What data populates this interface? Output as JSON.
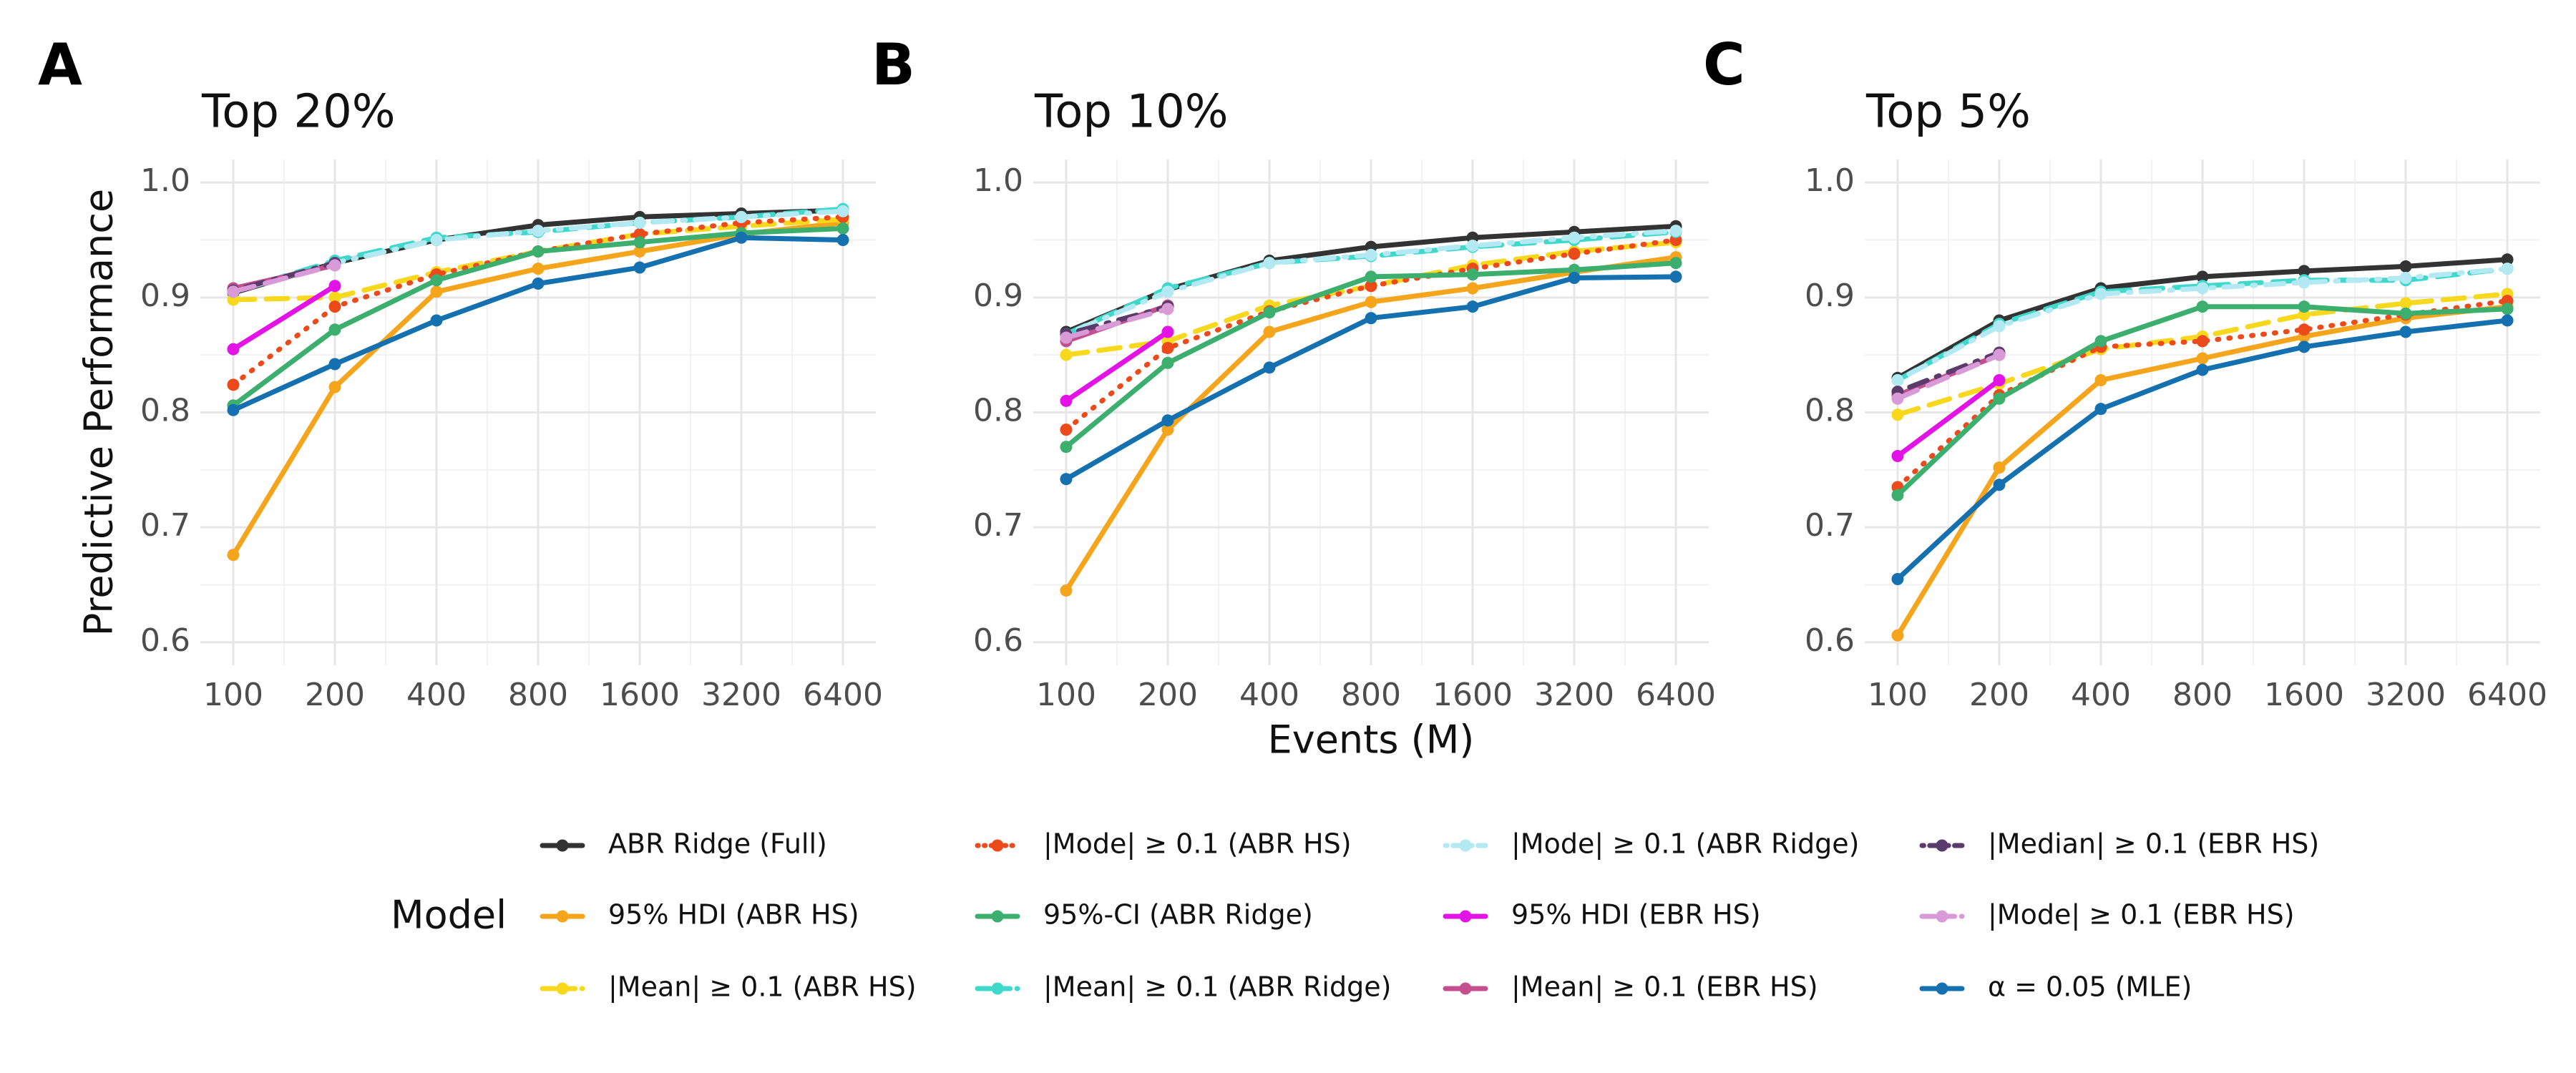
{
  "chart_data": [
    {
      "type": "line",
      "panel": "A",
      "title": "Top 20%",
      "y_label": "Predictive Performance",
      "categories": [
        "100",
        "200",
        "400",
        "800",
        "1600",
        "3200",
        "6400"
      ],
      "ylim": [
        0.58,
        1.02
      ],
      "yticks": [
        0.6,
        0.7,
        0.8,
        0.9,
        {
          "value": 1,
          "label": "1.0"
        }
      ],
      "grid": true,
      "series": [
        {
          "values": [
            0.904,
            0.93,
            0.95,
            0.963,
            0.97,
            0.973,
            0.976
          ]
        },
        {
          "values": [
            0.676,
            0.822,
            0.905,
            0.925,
            0.94,
            0.955,
            0.965
          ]
        },
        {
          "values": [
            0.898,
            0.9,
            0.922,
            0.94,
            0.955,
            0.962,
            0.968
          ]
        },
        {
          "values": [
            0.824,
            0.892,
            0.92,
            0.94,
            0.955,
            0.965,
            0.97
          ]
        },
        {
          "values": [
            0.806,
            0.872,
            0.915,
            0.94,
            0.948,
            0.956,
            0.96
          ]
        },
        {
          "values": [
            0.905,
            0.932,
            0.952,
            0.957,
            0.965,
            0.97,
            0.977
          ]
        },
        {
          "values": [
            0.905,
            0.93,
            0.95,
            0.958,
            0.965,
            0.97,
            0.975
          ]
        },
        {
          "values": [
            0.855,
            0.91,
            null,
            null,
            null,
            null,
            null
          ]
        },
        {
          "values": [
            0.908,
            0.928,
            null,
            null,
            null,
            null,
            null
          ]
        },
        {
          "values": [
            0.906,
            0.93,
            null,
            null,
            null,
            null,
            null
          ]
        },
        {
          "values": [
            0.905,
            0.928,
            null,
            null,
            null,
            null,
            null
          ]
        },
        {
          "values": [
            0.802,
            0.842,
            0.88,
            0.912,
            0.926,
            0.952,
            0.95
          ]
        }
      ]
    },
    {
      "type": "line",
      "panel": "B",
      "title": "Top 10%",
      "x_label": "Events (M)",
      "categories": [
        "100",
        "200",
        "400",
        "800",
        "1600",
        "3200",
        "6400"
      ],
      "ylim": [
        0.58,
        1.02
      ],
      "yticks": [
        0.6,
        0.7,
        0.8,
        0.9,
        {
          "value": 1,
          "label": "1.0"
        }
      ],
      "grid": true,
      "series": [
        {
          "values": [
            0.87,
            0.907,
            0.932,
            0.944,
            0.952,
            0.957,
            0.962
          ]
        },
        {
          "values": [
            0.645,
            0.785,
            0.87,
            0.896,
            0.908,
            0.922,
            0.935
          ]
        },
        {
          "values": [
            0.85,
            0.862,
            0.893,
            0.91,
            0.928,
            0.94,
            0.948
          ]
        },
        {
          "values": [
            0.785,
            0.856,
            0.888,
            0.91,
            0.925,
            0.938,
            0.95
          ]
        },
        {
          "values": [
            0.77,
            0.843,
            0.887,
            0.918,
            0.92,
            0.924,
            0.93
          ]
        },
        {
          "values": [
            0.868,
            0.908,
            0.93,
            0.936,
            0.944,
            0.95,
            0.957
          ]
        },
        {
          "values": [
            0.868,
            0.905,
            0.93,
            0.937,
            0.945,
            0.952,
            0.958
          ]
        },
        {
          "values": [
            0.81,
            0.87,
            null,
            null,
            null,
            null,
            null
          ]
        },
        {
          "values": [
            0.862,
            0.893,
            null,
            null,
            null,
            null,
            null
          ]
        },
        {
          "values": [
            0.868,
            0.892,
            null,
            null,
            null,
            null,
            null
          ]
        },
        {
          "values": [
            0.865,
            0.89,
            null,
            null,
            null,
            null,
            null
          ]
        },
        {
          "values": [
            0.742,
            0.793,
            0.839,
            0.882,
            0.892,
            0.917,
            0.918
          ]
        }
      ]
    },
    {
      "type": "line",
      "panel": "C",
      "title": "Top 5%",
      "categories": [
        "100",
        "200",
        "400",
        "800",
        "1600",
        "3200",
        "6400"
      ],
      "ylim": [
        0.58,
        1.02
      ],
      "yticks": [
        0.6,
        0.7,
        0.8,
        0.9,
        {
          "value": 1,
          "label": "1.0"
        }
      ],
      "grid": true,
      "series": [
        {
          "values": [
            0.83,
            0.88,
            0.908,
            0.918,
            0.923,
            0.927,
            0.933
          ]
        },
        {
          "values": [
            0.606,
            0.752,
            0.828,
            0.847,
            0.866,
            0.882,
            0.892
          ]
        },
        {
          "values": [
            0.798,
            0.825,
            0.855,
            0.866,
            0.885,
            0.895,
            0.903
          ]
        },
        {
          "values": [
            0.735,
            0.815,
            0.857,
            0.862,
            0.872,
            0.885,
            0.897
          ]
        },
        {
          "values": [
            0.728,
            0.812,
            0.862,
            0.892,
            0.892,
            0.886,
            0.89
          ]
        },
        {
          "values": [
            0.828,
            0.877,
            0.905,
            0.91,
            0.915,
            0.915,
            0.925
          ]
        },
        {
          "values": [
            0.828,
            0.875,
            0.903,
            0.908,
            0.913,
            0.917,
            0.925
          ]
        },
        {
          "values": [
            0.762,
            0.828,
            null,
            null,
            null,
            null,
            null
          ]
        },
        {
          "values": [
            0.815,
            0.85,
            null,
            null,
            null,
            null,
            null
          ]
        },
        {
          "values": [
            0.818,
            0.852,
            null,
            null,
            null,
            null,
            null
          ]
        },
        {
          "values": [
            0.812,
            0.85,
            null,
            null,
            null,
            null,
            null
          ]
        },
        {
          "values": [
            0.655,
            0.737,
            0.803,
            0.837,
            0.857,
            0.87,
            0.88
          ]
        }
      ]
    }
  ],
  "legend": {
    "title": "Model",
    "items": [
      {
        "name": "ABR Ridge (Full)",
        "color": "#333333",
        "dash": "solid"
      },
      {
        "name": "95% HDI (ABR HS)",
        "color": "#f5a51c",
        "dash": "solid"
      },
      {
        "name": "|Mean| ≥ 0.1 (ABR HS)",
        "color": "#f7d81c",
        "dash": "dashed"
      },
      {
        "name": "|Mode| ≥ 0.1 (ABR HS)",
        "color": "#ec4a1a",
        "dash": "dotted"
      },
      {
        "name": "95%-CI (ABR Ridge)",
        "color": "#3cae6e",
        "dash": "solid"
      },
      {
        "name": "|Mean| ≥ 0.1 (ABR Ridge)",
        "color": "#3fd9cc",
        "dash": "dashed"
      },
      {
        "name": "|Mode| ≥ 0.1 (ABR Ridge)",
        "color": "#b2e9f2",
        "dash": "dotdash"
      },
      {
        "name": "95% HDI (EBR HS)",
        "color": "#e312e6",
        "dash": "solid"
      },
      {
        "name": "|Mean| ≥ 0.1 (EBR HS)",
        "color": "#c44f8f",
        "dash": "solid"
      },
      {
        "name": "|Median| ≥ 0.1 (EBR HS)",
        "color": "#5b3b6c",
        "dash": "dotdash"
      },
      {
        "name": "|Mode| ≥ 0.1 (EBR HS)",
        "color": "#d99ad8",
        "dash": "dashed"
      },
      {
        "name": "α = 0.05 (MLE)",
        "color": "#1470ae",
        "dash": "solid"
      }
    ]
  }
}
